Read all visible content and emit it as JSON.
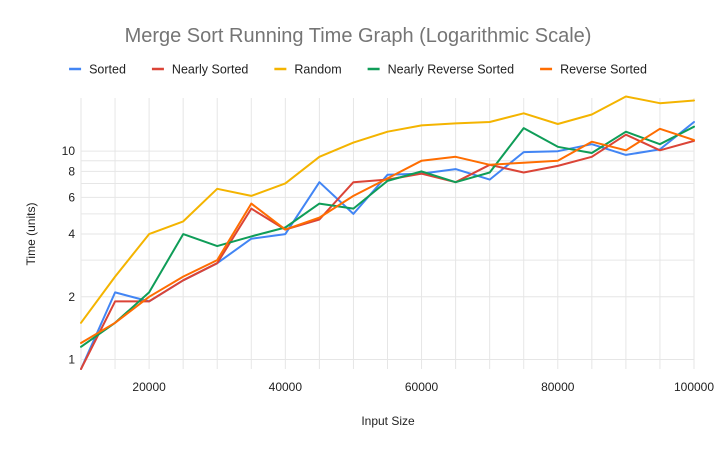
{
  "chart_data": {
    "type": "line",
    "title": "Merge Sort Running Time Graph (Logarithmic Scale)",
    "xlabel": "Input Size",
    "ylabel": "Time (units)",
    "x_scale": "linear",
    "y_scale": "log",
    "xlim": [
      10000,
      100000
    ],
    "ylim": [
      0.9,
      18
    ],
    "x_ticks": [
      20000,
      40000,
      60000,
      80000,
      100000
    ],
    "x_tick_labels": [
      "20000",
      "40000",
      "60000",
      "80000",
      "100000"
    ],
    "y_ticks": [
      1,
      2,
      4,
      6,
      8,
      10
    ],
    "y_tick_labels": [
      "1",
      "2",
      "4",
      "6",
      "8",
      "10"
    ],
    "grid": true,
    "legend_position": "top",
    "x": [
      10000,
      15000,
      20000,
      25000,
      30000,
      35000,
      40000,
      45000,
      50000,
      55000,
      60000,
      65000,
      70000,
      75000,
      80000,
      85000,
      90000,
      95000,
      100000
    ],
    "series": [
      {
        "name": "Sorted",
        "color": "#4285f4",
        "values": [
          0.9,
          2.1,
          1.9,
          2.4,
          2.9,
          3.8,
          4.0,
          7.1,
          5.0,
          7.7,
          7.8,
          8.2,
          7.3,
          9.9,
          10.0,
          10.8,
          9.6,
          10.2,
          13.8
        ]
      },
      {
        "name": "Nearly Sorted",
        "color": "#db4437",
        "values": [
          0.9,
          1.9,
          1.9,
          2.4,
          2.9,
          5.3,
          4.2,
          4.7,
          7.1,
          7.3,
          7.8,
          7.1,
          8.6,
          7.9,
          8.5,
          9.4,
          12.0,
          10.1,
          11.2
        ]
      },
      {
        "name": "Random",
        "color": "#f4b400",
        "values": [
          1.5,
          2.5,
          4.0,
          4.6,
          6.6,
          6.1,
          7.0,
          9.4,
          11.0,
          12.4,
          13.3,
          13.6,
          13.8,
          15.2,
          13.5,
          15.0,
          18.3,
          17.0,
          17.5
        ]
      },
      {
        "name": "Nearly Reverse Sorted",
        "color": "#0f9d58",
        "values": [
          1.15,
          1.5,
          2.1,
          4.0,
          3.5,
          3.9,
          4.3,
          5.6,
          5.3,
          7.2,
          8.0,
          7.1,
          7.9,
          12.9,
          10.5,
          9.8,
          12.4,
          10.8,
          13.1
        ]
      },
      {
        "name": "Reverse Sorted",
        "color": "#ff6d01",
        "values": [
          1.2,
          1.5,
          2.0,
          2.5,
          3.0,
          5.6,
          4.2,
          4.8,
          6.1,
          7.4,
          9.0,
          9.4,
          8.6,
          8.8,
          9.0,
          11.1,
          10.1,
          12.8,
          11.3
        ]
      }
    ]
  }
}
